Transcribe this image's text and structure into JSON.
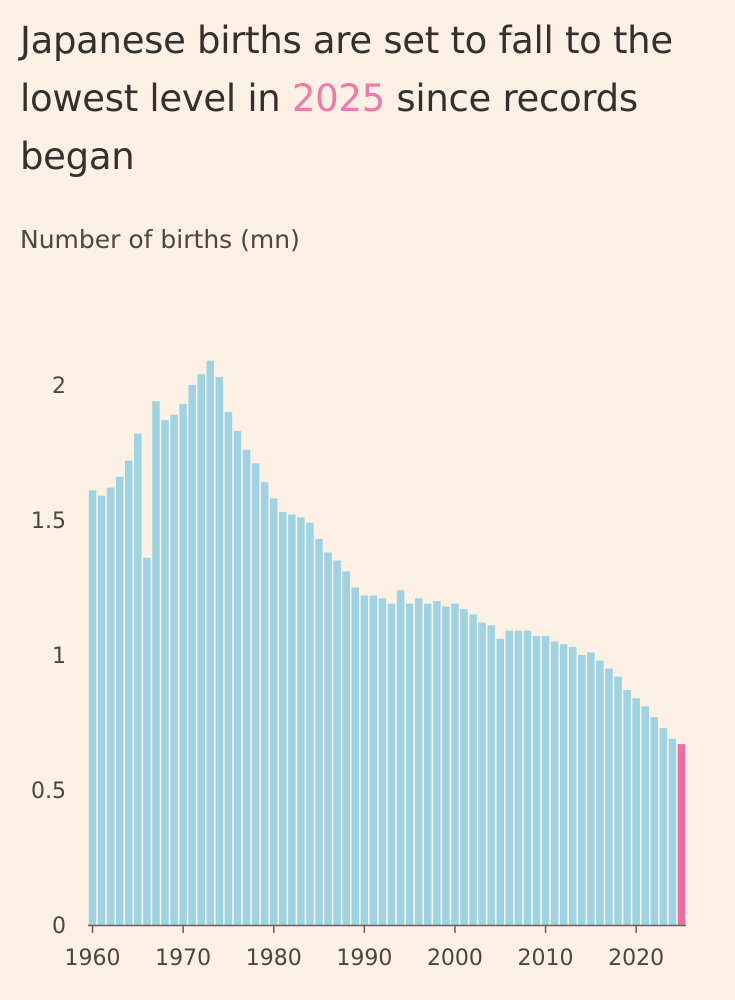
{
  "title": {
    "part1": "Japanese births are set to fall to the lowest level in ",
    "highlight": "2025",
    "part2": " since records began"
  },
  "chart_data": {
    "type": "bar",
    "title": "Japanese births are set to fall to the lowest level in 2025 since records began",
    "ylabel": "Number of births (mn)",
    "xlabel": "",
    "ylim": [
      0,
      2.2
    ],
    "yticks": [
      0,
      0.5,
      1,
      1.5,
      2
    ],
    "ytick_labels": [
      "0",
      "0.5",
      "1",
      "1.5",
      "2"
    ],
    "xticks": [
      1960,
      1970,
      1980,
      1990,
      2000,
      2010,
      2020
    ],
    "xtick_labels": [
      "1960",
      "1970",
      "1980",
      "1990",
      "2000",
      "2010",
      "2020"
    ],
    "base_color": "#9dd3e3",
    "highlight_color": "#ee6ea0",
    "highlight_category": 2025,
    "categories": [
      1960,
      1961,
      1962,
      1963,
      1964,
      1965,
      1966,
      1967,
      1968,
      1969,
      1970,
      1971,
      1972,
      1973,
      1974,
      1975,
      1976,
      1977,
      1978,
      1979,
      1980,
      1981,
      1982,
      1983,
      1984,
      1985,
      1986,
      1987,
      1988,
      1989,
      1990,
      1991,
      1992,
      1993,
      1994,
      1995,
      1996,
      1997,
      1998,
      1999,
      2000,
      2001,
      2002,
      2003,
      2004,
      2005,
      2006,
      2007,
      2008,
      2009,
      2010,
      2011,
      2012,
      2013,
      2014,
      2015,
      2016,
      2017,
      2018,
      2019,
      2020,
      2021,
      2022,
      2023,
      2024,
      2025
    ],
    "values": [
      1.61,
      1.59,
      1.62,
      1.66,
      1.72,
      1.82,
      1.36,
      1.94,
      1.87,
      1.89,
      1.93,
      2.0,
      2.04,
      2.09,
      2.03,
      1.9,
      1.83,
      1.76,
      1.71,
      1.64,
      1.58,
      1.53,
      1.52,
      1.51,
      1.49,
      1.43,
      1.38,
      1.35,
      1.31,
      1.25,
      1.22,
      1.22,
      1.21,
      1.19,
      1.24,
      1.19,
      1.21,
      1.19,
      1.2,
      1.18,
      1.19,
      1.17,
      1.15,
      1.12,
      1.11,
      1.06,
      1.09,
      1.09,
      1.09,
      1.07,
      1.07,
      1.05,
      1.04,
      1.03,
      1.0,
      1.01,
      0.98,
      0.95,
      0.92,
      0.87,
      0.84,
      0.81,
      0.77,
      0.73,
      0.69,
      0.67
    ]
  }
}
